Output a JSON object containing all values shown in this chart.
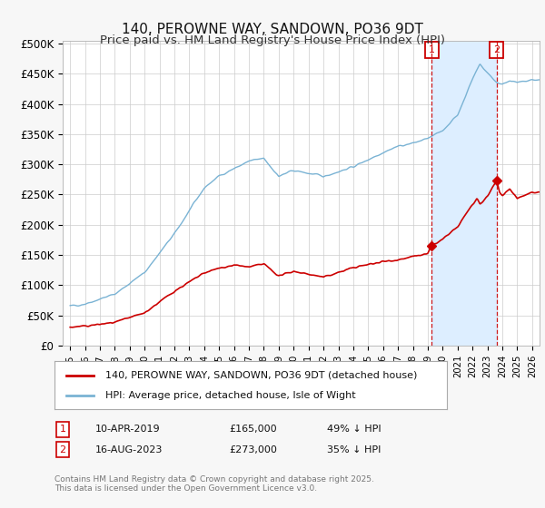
{
  "title": "140, PEROWNE WAY, SANDOWN, PO36 9DT",
  "subtitle": "Price paid vs. HM Land Registry's House Price Index (HPI)",
  "yticks": [
    0,
    50000,
    100000,
    150000,
    200000,
    250000,
    300000,
    350000,
    400000,
    450000,
    500000
  ],
  "ytick_labels": [
    "£0",
    "£50K",
    "£100K",
    "£150K",
    "£200K",
    "£250K",
    "£300K",
    "£350K",
    "£400K",
    "£450K",
    "£500K"
  ],
  "xlim_start": 1994.5,
  "xlim_end": 2026.5,
  "ylim_min": 0,
  "ylim_max": 505000,
  "hpi_color": "#7ab3d4",
  "price_color": "#cc0000",
  "dashed_color": "#cc0000",
  "shade_color": "#ddeeff",
  "legend_label_red": "140, PEROWNE WAY, SANDOWN, PO36 9DT (detached house)",
  "legend_label_blue": "HPI: Average price, detached house, Isle of Wight",
  "annotation1_label": "1",
  "annotation1_date": "10-APR-2019",
  "annotation1_price": "£165,000",
  "annotation1_pct": "49% ↓ HPI",
  "annotation1_year": 2019.27,
  "annotation1_price_val": 165000,
  "annotation2_label": "2",
  "annotation2_date": "16-AUG-2023",
  "annotation2_price": "£273,000",
  "annotation2_pct": "35% ↓ HPI",
  "annotation2_year": 2023.62,
  "annotation2_price_val": 273000,
  "footer": "Contains HM Land Registry data © Crown copyright and database right 2025.\nThis data is licensed under the Open Government Licence v3.0.",
  "bg_color": "#f7f7f7",
  "plot_bg_color": "#ffffff"
}
